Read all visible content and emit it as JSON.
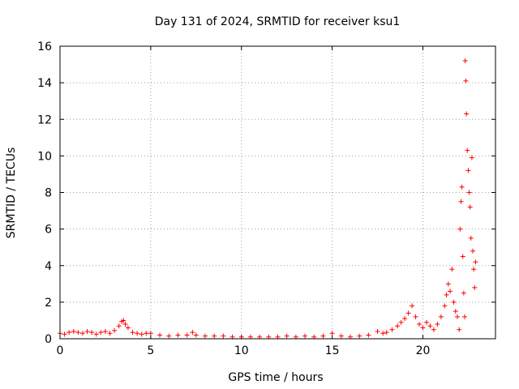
{
  "chart_data": {
    "type": "scatter",
    "title": "Day 131 of 2024, SRMTID for receiver ksu1",
    "xlabel": "GPS time / hours",
    "ylabel": "SRMTID / TECUs",
    "xlim": [
      0,
      24
    ],
    "ylim": [
      0,
      16
    ],
    "xticks": [
      0,
      5,
      10,
      15,
      20
    ],
    "yticks": [
      0,
      2,
      4,
      6,
      8,
      10,
      12,
      14,
      16
    ],
    "grid": true,
    "marker": "plus",
    "color": "#ff0000",
    "series": [
      {
        "x": [
          0.0,
          0.25,
          0.5,
          0.75,
          1.0,
          1.25,
          1.5,
          1.75,
          2.0,
          2.25,
          2.5,
          2.75,
          3.0,
          3.25,
          3.4,
          3.5,
          3.6,
          3.75,
          4.0,
          4.25,
          4.5,
          4.75,
          5.0,
          5.5,
          6.0,
          6.5,
          7.0,
          7.3,
          7.5,
          8.0,
          8.5,
          9.0,
          9.5,
          10.0,
          10.5,
          11.0,
          11.5,
          12.0,
          12.5,
          13.0,
          13.5,
          14.0,
          14.5,
          15.0,
          15.5,
          16.0,
          16.5,
          17.0,
          17.5,
          17.8,
          18.0,
          18.3,
          18.6,
          18.8,
          19.0,
          19.2,
          19.4,
          19.6,
          19.8,
          20.0,
          20.2,
          20.4,
          20.6,
          20.8,
          21.0,
          21.2,
          21.3,
          21.4,
          21.5,
          21.6,
          21.7,
          21.8,
          21.9,
          22.0,
          22.05,
          22.1,
          22.15,
          22.2,
          22.25,
          22.3,
          22.33,
          22.36,
          22.4,
          22.45,
          22.5,
          22.55,
          22.6,
          22.65,
          22.7,
          22.75,
          22.8,
          22.85,
          22.9
        ],
        "y": [
          0.3,
          0.25,
          0.35,
          0.4,
          0.35,
          0.3,
          0.4,
          0.35,
          0.25,
          0.35,
          0.4,
          0.3,
          0.45,
          0.7,
          0.95,
          1.0,
          0.8,
          0.6,
          0.35,
          0.3,
          0.25,
          0.3,
          0.3,
          0.2,
          0.15,
          0.2,
          0.2,
          0.35,
          0.2,
          0.15,
          0.15,
          0.15,
          0.1,
          0.1,
          0.1,
          0.1,
          0.1,
          0.1,
          0.15,
          0.1,
          0.15,
          0.1,
          0.15,
          0.3,
          0.15,
          0.1,
          0.15,
          0.2,
          0.4,
          0.3,
          0.35,
          0.5,
          0.7,
          0.9,
          1.1,
          1.4,
          1.8,
          1.2,
          0.8,
          0.6,
          0.9,
          0.7,
          0.5,
          0.8,
          1.2,
          1.8,
          2.4,
          3.0,
          2.6,
          3.8,
          2.0,
          1.5,
          1.2,
          0.5,
          6.0,
          7.5,
          8.3,
          4.5,
          2.5,
          1.2,
          15.2,
          14.1,
          12.3,
          10.3,
          9.2,
          8.0,
          7.2,
          5.5,
          9.9,
          4.8,
          3.8,
          2.8,
          4.2
        ]
      }
    ]
  }
}
